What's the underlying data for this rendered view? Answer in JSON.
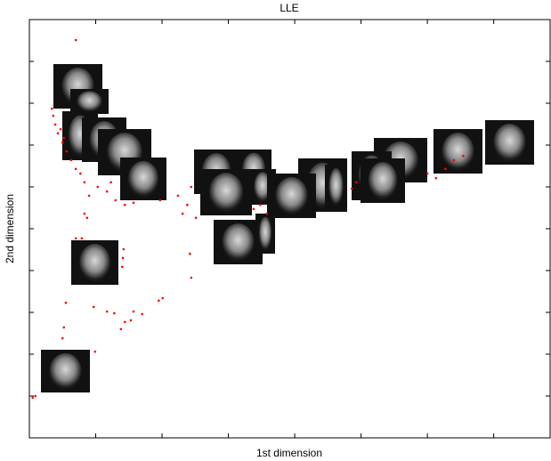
{
  "chart_data": {
    "type": "scatter",
    "title": "LLE",
    "x_label": "1st dimension",
    "y_label": "2nd dimension",
    "xlim": [
      0,
      7.85
    ],
    "ylim": [
      0,
      10
    ],
    "xticks": [
      1,
      2,
      3,
      4,
      5,
      6,
      7
    ],
    "yticks": [
      1,
      2,
      3,
      4,
      5,
      6,
      7,
      8,
      9
    ],
    "series": [
      {
        "color": "#ff0000",
        "x": [
          0.7,
          0.05,
          0.09,
          0.99,
          0.5,
          0.52,
          0.55,
          0.97,
          1.17,
          1.28,
          1.44,
          1.57,
          1.7,
          1.53,
          1.38,
          1.95,
          2.01,
          2.44,
          2.42,
          1.4,
          1.41,
          1.42,
          0.79,
          0.7,
          0.83,
          0.87,
          0.9,
          0.83,
          1.03,
          1.17,
          1.23,
          1.3,
          1.44,
          1.57,
          1.97,
          2.24,
          2.31,
          2.38,
          2.44,
          2.51,
          3.38,
          3.48,
          3.58,
          4.86,
          4.93,
          6.0,
          6.13,
          6.27,
          6.4,
          6.54,
          0.34,
          0.36,
          0.39,
          0.43,
          0.47,
          0.5,
          0.52,
          0.56,
          0.63,
          0.7,
          0.77
        ],
        "values": [
          9.51,
          0.96,
          1.0,
          2.06,
          2.38,
          2.64,
          3.23,
          3.13,
          3.02,
          2.98,
          2.77,
          3.02,
          2.96,
          2.81,
          2.6,
          3.28,
          3.34,
          3.83,
          4.4,
          4.09,
          4.3,
          4.51,
          4.77,
          4.77,
          5.36,
          5.26,
          5.79,
          6.11,
          6.0,
          5.89,
          6.11,
          5.68,
          5.57,
          5.62,
          5.68,
          5.79,
          5.36,
          5.57,
          6.0,
          5.26,
          5.47,
          5.57,
          5.36,
          5.96,
          6.11,
          6.32,
          6.21,
          6.43,
          6.64,
          6.74,
          7.87,
          7.7,
          7.49,
          7.28,
          7.38,
          7.06,
          7.17,
          6.85,
          6.64,
          6.43,
          6.32
        ]
      }
    ]
  }
}
